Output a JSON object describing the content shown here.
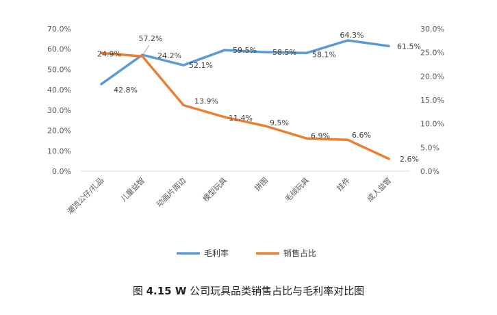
{
  "chart_data": {
    "type": "line",
    "categories": [
      "潮流公仔/礼品",
      "儿童益智",
      "动画片周边",
      "模型玩具",
      "拼图",
      "毛绒玩具",
      "挂件",
      "成人益智"
    ],
    "series": [
      {
        "name": "毛利率",
        "axis": "left",
        "color": "#5B9BD5",
        "values": [
          42.8,
          57.2,
          52.1,
          59.5,
          58.5,
          58.1,
          64.3,
          61.5
        ],
        "labels": [
          "42.8%",
          "57.2%",
          "52.1%",
          "59.5%",
          "58.5%",
          "58.1%",
          "64.3%",
          "61.5%"
        ]
      },
      {
        "name": "销售占比",
        "axis": "right",
        "color": "#ED7D31",
        "values": [
          24.9,
          24.2,
          13.9,
          11.4,
          9.5,
          6.9,
          6.6,
          2.6
        ],
        "labels": [
          "24.9%",
          "24.2%",
          "13.9%",
          "11.4%",
          "9.5%",
          "6.9%",
          "6.6%",
          "2.6%"
        ]
      }
    ],
    "y_left": {
      "range": [
        0,
        70
      ],
      "ticks": [
        "0.0%",
        "10.0%",
        "20.0%",
        "30.0%",
        "40.0%",
        "50.0%",
        "60.0%",
        "70.0%"
      ]
    },
    "y_right": {
      "range": [
        0,
        30
      ],
      "ticks": [
        "0.0%",
        "5.0%",
        "10.0%",
        "15.0%",
        "20.0%",
        "25.0%",
        "30.0%"
      ]
    },
    "grid": false,
    "legend_position": "bottom"
  },
  "caption": {
    "prefix": "图 ",
    "number": "4.15 W",
    "text": " 公司玩具品类销售占比与毛利率对比图"
  }
}
